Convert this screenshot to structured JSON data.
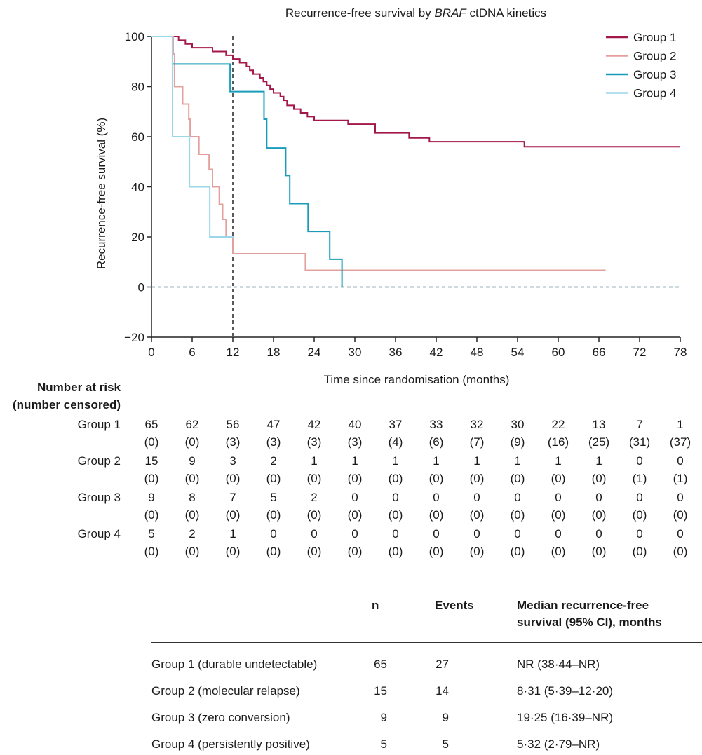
{
  "chart_data": {
    "type": "line",
    "step": true,
    "title_prefix": "Recurrence-free survival by ",
    "title_italic": "BRAF",
    "title_suffix": " ctDNA kinetics",
    "xlabel": "Time since randomisation (months)",
    "ylabel": "Recurrence-free survival (%)",
    "xlim": [
      0,
      78
    ],
    "ylim": [
      -20,
      100
    ],
    "xticks": [
      0,
      6,
      12,
      18,
      24,
      30,
      36,
      42,
      48,
      54,
      60,
      66,
      72,
      78
    ],
    "yticks": [
      -20,
      0,
      20,
      40,
      60,
      80,
      100
    ],
    "reference_lines": [
      {
        "orientation": "vertical",
        "value": 12,
        "style": "dashed",
        "color": "#222222"
      },
      {
        "orientation": "horizontal",
        "value": 0,
        "style": "dashed",
        "color": "#3d6b78",
        "x_end": 78
      }
    ],
    "legend_position": "top-right",
    "series": [
      {
        "name": "Group 1",
        "color": "#a3174a",
        "points": [
          [
            0,
            100
          ],
          [
            3,
            100
          ],
          [
            4,
            98.5
          ],
          [
            5,
            97
          ],
          [
            6,
            95.5
          ],
          [
            9,
            94
          ],
          [
            11,
            92.5
          ],
          [
            12,
            91
          ],
          [
            13,
            89.5
          ],
          [
            14,
            88
          ],
          [
            14.5,
            86.5
          ],
          [
            15,
            85
          ],
          [
            16,
            83.5
          ],
          [
            16.5,
            82
          ],
          [
            17,
            80.5
          ],
          [
            17.5,
            79
          ],
          [
            18,
            77.5
          ],
          [
            19,
            76
          ],
          [
            19.5,
            74.5
          ],
          [
            20,
            72.5
          ],
          [
            21,
            71
          ],
          [
            22,
            69.5
          ],
          [
            23,
            68
          ],
          [
            24,
            66.5
          ],
          [
            29,
            65
          ],
          [
            33,
            61.5
          ],
          [
            38,
            59.5
          ],
          [
            41,
            58
          ],
          [
            55,
            56
          ],
          [
            78,
            56
          ]
        ]
      },
      {
        "name": "Group 2",
        "color": "#e3a09d",
        "points": [
          [
            0,
            100
          ],
          [
            3,
            100
          ],
          [
            3.2,
            93
          ],
          [
            3.4,
            80
          ],
          [
            4.6,
            73
          ],
          [
            5.5,
            67
          ],
          [
            5.7,
            60
          ],
          [
            6.5,
            60
          ],
          [
            7,
            53
          ],
          [
            8,
            53
          ],
          [
            8.5,
            47
          ],
          [
            9,
            40
          ],
          [
            9.7,
            40
          ],
          [
            10,
            33
          ],
          [
            10.5,
            27
          ],
          [
            11,
            20
          ],
          [
            12,
            13.3
          ],
          [
            22.5,
            13.3
          ],
          [
            22.7,
            6.7
          ],
          [
            67,
            6.7
          ]
        ]
      },
      {
        "name": "Group 3",
        "color": "#199cba",
        "points": [
          [
            0,
            100
          ],
          [
            3,
            100
          ],
          [
            3.1,
            89
          ],
          [
            11.5,
            89
          ],
          [
            11.6,
            78
          ],
          [
            16.3,
            78
          ],
          [
            16.6,
            67
          ],
          [
            17,
            55.5
          ],
          [
            19.5,
            55.5
          ],
          [
            19.8,
            44.5
          ],
          [
            20.4,
            33.3
          ],
          [
            22.9,
            33.3
          ],
          [
            23.1,
            22.2
          ],
          [
            26.1,
            22.2
          ],
          [
            26.3,
            11.1
          ],
          [
            28,
            11.1
          ],
          [
            28.1,
            0
          ]
        ]
      },
      {
        "name": "Group 4",
        "color": "#9bd6ea",
        "points": [
          [
            0,
            100
          ],
          [
            3,
            100
          ],
          [
            3.1,
            60
          ],
          [
            5.5,
            60
          ],
          [
            5.6,
            40
          ],
          [
            8.5,
            40
          ],
          [
            8.6,
            20
          ],
          [
            12.1,
            20
          ]
        ]
      }
    ]
  },
  "risk_table": {
    "title_line1": "Number at risk",
    "title_line2": "(number censored)",
    "times": [
      0,
      6,
      12,
      18,
      24,
      30,
      36,
      42,
      48,
      54,
      60,
      66,
      72,
      78
    ],
    "rows": [
      {
        "label": "Group 1",
        "at_risk": [
          "65",
          "62",
          "56",
          "47",
          "42",
          "40",
          "37",
          "33",
          "32",
          "30",
          "22",
          "13",
          "7",
          "1"
        ],
        "censored": [
          "(0)",
          "(0)",
          "(3)",
          "(3)",
          "(3)",
          "(3)",
          "(4)",
          "(6)",
          "(7)",
          "(9)",
          "(16)",
          "(25)",
          "(31)",
          "(37)"
        ]
      },
      {
        "label": "Group 2",
        "at_risk": [
          "15",
          "9",
          "3",
          "2",
          "1",
          "1",
          "1",
          "1",
          "1",
          "1",
          "1",
          "1",
          "0",
          "0"
        ],
        "censored": [
          "(0)",
          "(0)",
          "(0)",
          "(0)",
          "(0)",
          "(0)",
          "(0)",
          "(0)",
          "(0)",
          "(0)",
          "(0)",
          "(0)",
          "(1)",
          "(1)"
        ]
      },
      {
        "label": "Group 3",
        "at_risk": [
          "9",
          "8",
          "7",
          "5",
          "2",
          "0",
          "0",
          "0",
          "0",
          "0",
          "0",
          "0",
          "0",
          "0"
        ],
        "censored": [
          "(0)",
          "(0)",
          "(0)",
          "(0)",
          "(0)",
          "(0)",
          "(0)",
          "(0)",
          "(0)",
          "(0)",
          "(0)",
          "(0)",
          "(0)",
          "(0)"
        ]
      },
      {
        "label": "Group 4",
        "at_risk": [
          "5",
          "2",
          "1",
          "0",
          "0",
          "0",
          "0",
          "0",
          "0",
          "0",
          "0",
          "0",
          "0",
          "0"
        ],
        "censored": [
          "(0)",
          "(0)",
          "(0)",
          "(0)",
          "(0)",
          "(0)",
          "(0)",
          "(0)",
          "(0)",
          "(0)",
          "(0)",
          "(0)",
          "(0)",
          "(0)"
        ]
      }
    ]
  },
  "summary_table": {
    "headers": {
      "n": "n",
      "events": "Events",
      "median_line1": "Median recurrence-free",
      "median_line2": "survival (95% CI), months"
    },
    "rows": [
      {
        "label": "Group 1 (durable undetectable)",
        "n": "65",
        "events": "27",
        "median": "NR (38·44–NR)"
      },
      {
        "label": "Group 2 (molecular relapse)",
        "n": "15",
        "events": "14",
        "median": "8·31 (5·39–12·20)"
      },
      {
        "label": "Group 3 (zero conversion)",
        "n": "9",
        "events": "9",
        "median": "19·25 (16·39–NR)"
      },
      {
        "label": "Group 4 (persistently positive)",
        "n": "5",
        "events": "5",
        "median": "5·32 (2·79–NR)"
      }
    ]
  }
}
